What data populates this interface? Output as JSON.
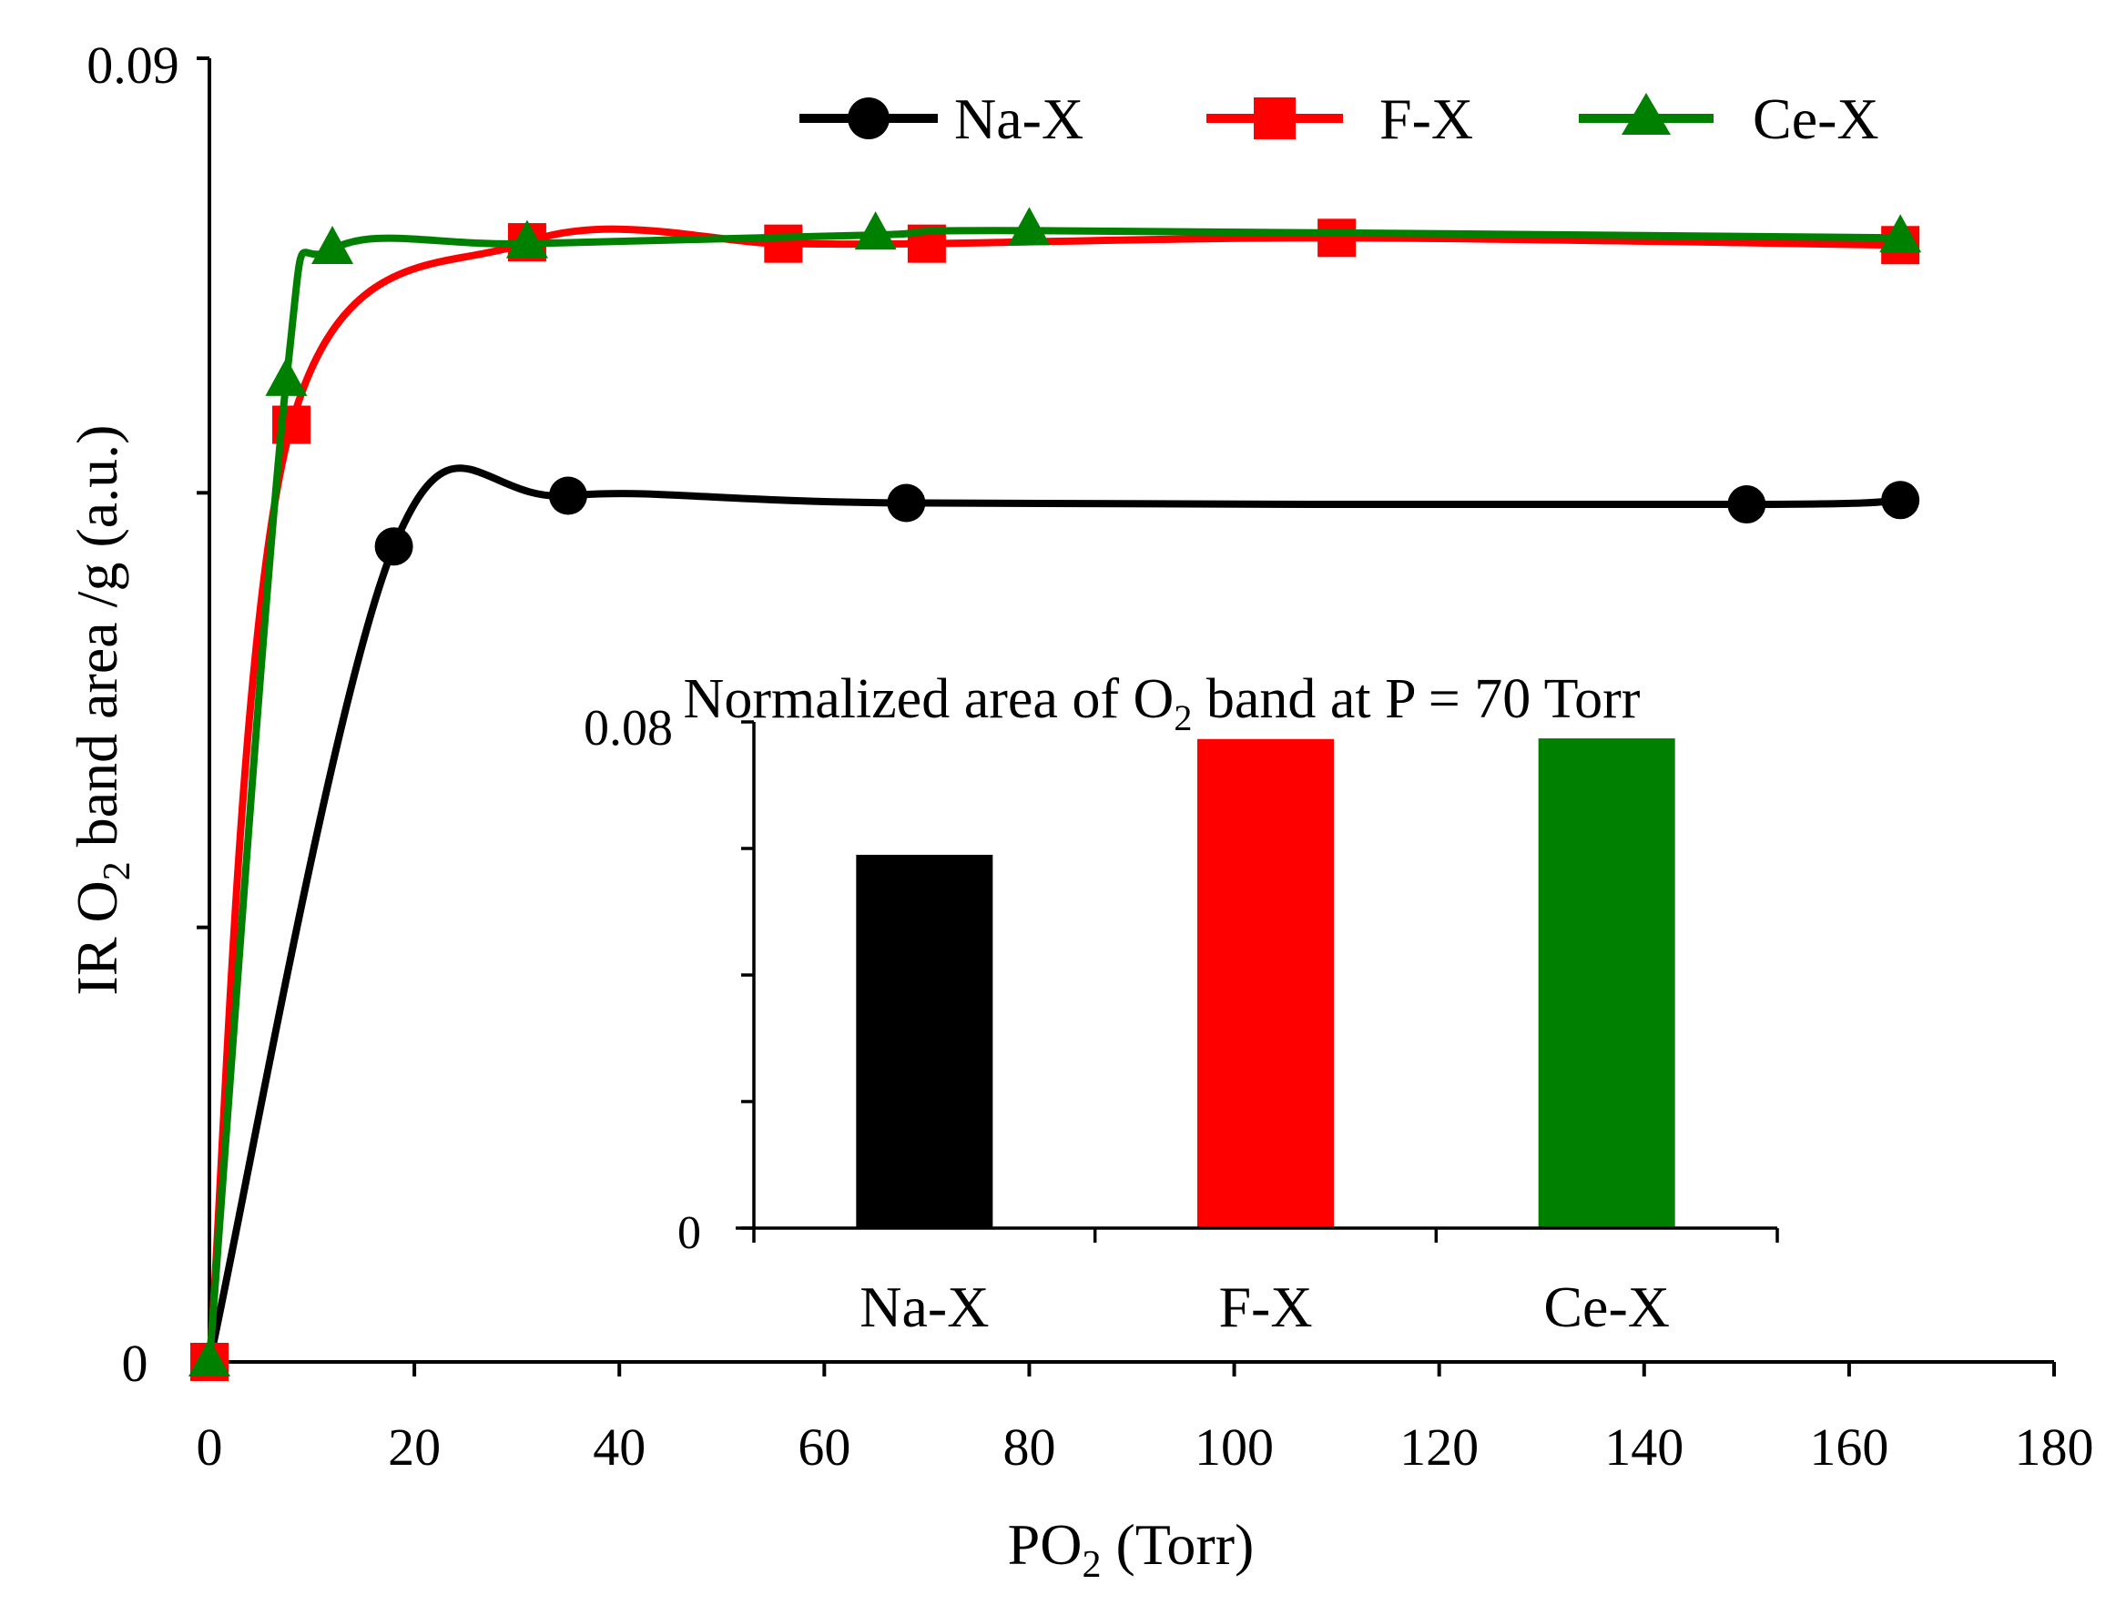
{
  "chart_data": [
    {
      "id": "main",
      "type": "line",
      "title": "",
      "xlabel": "PO",
      "xlabel_sub": "2",
      "xlabel_suffix": " (Torr)",
      "ylabel_prefix": "IR O",
      "ylabel_sub": "2",
      "ylabel_suffix": " band area /g (a.u.)",
      "xlim": [
        0,
        180
      ],
      "ylim": [
        0,
        0.09
      ],
      "x_ticks": [
        "0",
        "20",
        "40",
        "60",
        "80",
        "100",
        "120",
        "140",
        "160",
        "180"
      ],
      "y_tick_labels": {
        "bottom": "0",
        "top": "0.09"
      },
      "legend": "top-right",
      "series": [
        {
          "name": "Na-X",
          "color": "#000000",
          "marker": "circle",
          "x": [
            0,
            18,
            35,
            68,
            150,
            165
          ],
          "y": [
            0,
            0.0563,
            0.0598,
            0.0593,
            0.0592,
            0.0595
          ]
        },
        {
          "name": "F-X",
          "color": "#ff0000",
          "marker": "square",
          "x": [
            0,
            8,
            31,
            56,
            70,
            110,
            165
          ],
          "y": [
            0,
            0.0647,
            0.0773,
            0.0772,
            0.0772,
            0.0776,
            0.0771
          ]
        },
        {
          "name": "Ce-X",
          "color": "#008000",
          "marker": "triangle",
          "x": [
            0,
            7.5,
            12,
            31,
            65,
            80,
            165
          ],
          "y": [
            0,
            0.0677,
            0.0768,
            0.0772,
            0.0778,
            0.0781,
            0.0776
          ]
        }
      ]
    },
    {
      "id": "inset",
      "type": "bar",
      "title_prefix": "Normalized area of O",
      "title_sub": "2",
      "title_suffix": " band at P =  70 Torr",
      "categories": [
        "Na-X",
        "F-X",
        "Ce-X"
      ],
      "values": [
        0.059,
        0.0773,
        0.0774
      ],
      "colors": [
        "#000000",
        "#ff0000",
        "#008000"
      ],
      "ylim": [
        0,
        0.08
      ],
      "y_tick_labels": {
        "bottom": "0",
        "top": "0.08"
      }
    }
  ]
}
